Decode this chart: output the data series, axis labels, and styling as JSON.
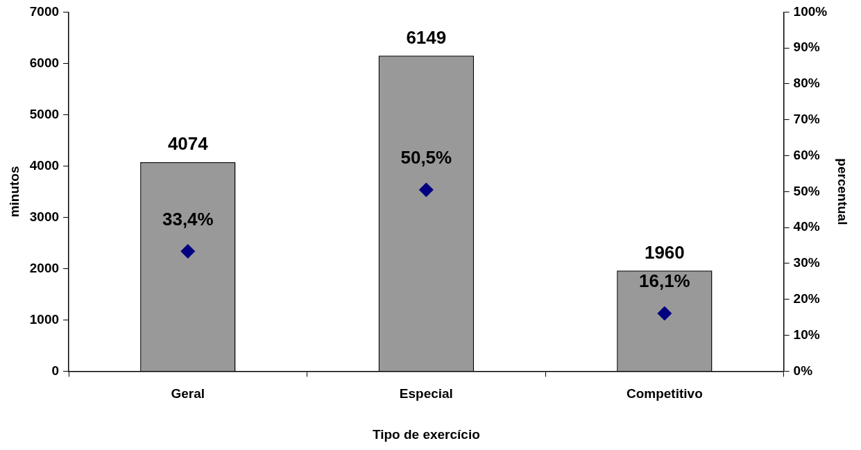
{
  "chart_data": {
    "type": "bar",
    "xlabel": "Tipo de exercício",
    "ylabel": "minutos",
    "y2label": "percentual",
    "categories": [
      "Geral",
      "Especial",
      "Competitivo"
    ],
    "series": [
      {
        "color": "#999999",
        "values": [
          4074,
          6149,
          1960
        ],
        "value_labels": [
          "4074",
          "6149",
          "1960"
        ]
      },
      {
        "type": "scatter",
        "axis": "y2",
        "color": "#000080",
        "marker": "diamond",
        "x": [
          "Geral",
          "Especial",
          "Competitivo"
        ],
        "values": [
          33.4,
          50.5,
          16.1
        ],
        "value_labels": [
          "33,4%",
          "50,5%",
          "16,1%"
        ]
      }
    ],
    "ylim": [
      0,
      7000
    ],
    "yticks": [
      0,
      1000,
      2000,
      3000,
      4000,
      5000,
      6000,
      7000
    ],
    "y2lim": [
      0,
      100
    ],
    "y2ticks": [
      {
        "value": 0,
        "label": "0%"
      },
      {
        "value": 10,
        "label": "10%"
      },
      {
        "value": 20,
        "label": "20%"
      },
      {
        "value": 30,
        "label": "30%"
      },
      {
        "value": 40,
        "label": "40%"
      },
      {
        "value": 50,
        "label": "50%"
      },
      {
        "value": 60,
        "label": "60%"
      },
      {
        "value": 70,
        "label": "70%"
      },
      {
        "value": 80,
        "label": "80%"
      },
      {
        "value": 90,
        "label": "90%"
      },
      {
        "value": 100,
        "label": "100%"
      }
    ],
    "grid": false,
    "legend": false
  }
}
